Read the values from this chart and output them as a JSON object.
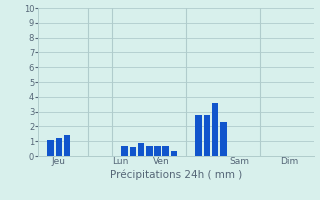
{
  "bars": [
    {
      "x": 1,
      "height": 1.1
    },
    {
      "x": 2,
      "height": 1.2
    },
    {
      "x": 3,
      "height": 1.4
    },
    {
      "x": 10,
      "height": 0.65
    },
    {
      "x": 11,
      "height": 0.6
    },
    {
      "x": 12,
      "height": 0.85
    },
    {
      "x": 13,
      "height": 0.7
    },
    {
      "x": 14,
      "height": 0.65
    },
    {
      "x": 15,
      "height": 0.65
    },
    {
      "x": 16,
      "height": 0.35
    },
    {
      "x": 19,
      "height": 2.75
    },
    {
      "x": 20,
      "height": 2.8
    },
    {
      "x": 21,
      "height": 3.6
    },
    {
      "x": 22,
      "height": 2.3
    }
  ],
  "bar_color": "#1155cc",
  "background_color": "#d8f0ec",
  "grid_color": "#b0cccc",
  "tick_color": "#556677",
  "xlabel": "Précipitations 24h ( mm )",
  "ylim": [
    0,
    10
  ],
  "yticks": [
    0,
    1,
    2,
    3,
    4,
    5,
    6,
    7,
    8,
    9,
    10
  ],
  "xtick_positions": [
    2,
    9.5,
    14.5,
    24,
    30
  ],
  "xtick_labels": [
    "Jeu",
    "Lun",
    "Ven",
    "Sam",
    "Dim"
  ],
  "vline_positions": [
    5.5,
    8.5,
    17.5,
    26.5
  ],
  "xlim": [
    -0.5,
    33
  ],
  "total_bars": 33
}
